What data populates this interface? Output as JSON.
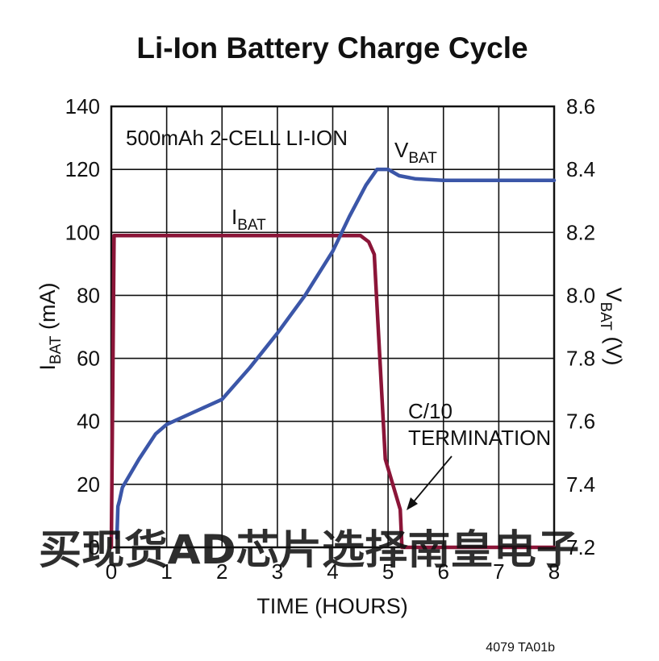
{
  "chart_data": {
    "type": "line",
    "title": "Li-Ion Battery Charge Cycle",
    "xlabel": "TIME (HOURS)",
    "ylabel_left": {
      "main": "I",
      "sub": "BAT",
      "rest": " (mA)"
    },
    "ylabel_right": {
      "main": "V",
      "sub": "BAT",
      "rest": " (V)"
    },
    "xlim": [
      0,
      8
    ],
    "ylim_left": [
      0,
      140
    ],
    "ylim_right": [
      7.2,
      8.6
    ],
    "x_ticks": [
      "0",
      "1",
      "2",
      "3",
      "4",
      "5",
      "6",
      "7",
      "8"
    ],
    "y_left_ticks": [
      "0",
      "20",
      "40",
      "60",
      "80",
      "100",
      "120",
      "140"
    ],
    "y_right_ticks": [
      "7.2",
      "7.4",
      "7.6",
      "7.8",
      "8.0",
      "8.2",
      "8.4",
      "8.6"
    ],
    "grid": true,
    "series": [
      {
        "name": "IBAT",
        "label_main": "I",
        "label_sub": "BAT",
        "axis": "left",
        "color": "#8b1538",
        "x": [
          0.0,
          0.05,
          0.08,
          0.1,
          4.5,
          4.65,
          4.75,
          4.82,
          4.95,
          5.22,
          5.25,
          8.0
        ],
        "y": [
          0,
          99,
          99,
          99,
          99,
          97,
          93,
          70,
          28,
          12,
          0,
          0
        ]
      },
      {
        "name": "VBAT",
        "label_main": "V",
        "label_sub": "BAT",
        "axis": "right",
        "color": "#3b56a8",
        "x": [
          0.1,
          0.12,
          0.15,
          0.2,
          0.5,
          0.8,
          1.0,
          1.5,
          2.0,
          2.5,
          3.0,
          3.5,
          4.0,
          4.3,
          4.6,
          4.8,
          5.0,
          5.2,
          5.5,
          6.0,
          7.0,
          8.0
        ],
        "y": [
          7.23,
          7.33,
          7.35,
          7.39,
          7.48,
          7.56,
          7.59,
          7.63,
          7.67,
          7.77,
          7.88,
          8.0,
          8.14,
          8.25,
          8.35,
          8.4,
          8.4,
          8.38,
          8.37,
          8.365,
          8.365,
          8.365
        ]
      }
    ],
    "annotations": {
      "box_label": "500mAh 2-CELL LI-ION",
      "termination_line1": "C/10",
      "termination_line2": "TERMINATION",
      "termination_point": {
        "x": 5.25,
        "y": 12
      }
    },
    "footnote": "4079 TA01b"
  },
  "watermark": {
    "text": "买现货AD芯片选择南皇电子",
    "color": "#ff2a2a"
  }
}
